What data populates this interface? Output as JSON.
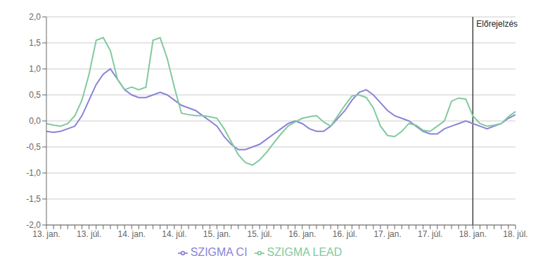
{
  "chart_data": {
    "type": "line",
    "categories": [
      "13. jan.",
      null,
      null,
      null,
      null,
      null,
      "13. júl.",
      null,
      null,
      null,
      null,
      null,
      "14. jan.",
      null,
      null,
      null,
      null,
      null,
      "14. júl.",
      null,
      null,
      null,
      null,
      null,
      "15. jan.",
      null,
      null,
      null,
      null,
      null,
      "15. júl.",
      null,
      null,
      null,
      null,
      null,
      "16. jan.",
      null,
      null,
      null,
      null,
      null,
      "16. júl.",
      null,
      null,
      null,
      null,
      null,
      "17. jan.",
      null,
      null,
      null,
      null,
      null,
      "17. júl.",
      null,
      null,
      null,
      null,
      null,
      "18. jan.",
      null,
      null,
      null,
      null,
      null,
      "18. júl."
    ],
    "series": [
      {
        "name": "SZIGMA CI",
        "values": [
          -0.2,
          -0.22,
          -0.2,
          -0.15,
          -0.1,
          0.1,
          0.4,
          0.7,
          0.9,
          1.0,
          0.8,
          0.6,
          0.5,
          0.45,
          0.45,
          0.5,
          0.55,
          0.5,
          0.4,
          0.3,
          0.25,
          0.2,
          0.1,
          0.0,
          -0.1,
          -0.3,
          -0.45,
          -0.55,
          -0.55,
          -0.5,
          -0.45,
          -0.35,
          -0.25,
          -0.15,
          -0.05,
          0.0,
          -0.05,
          -0.15,
          -0.2,
          -0.2,
          -0.1,
          0.05,
          0.2,
          0.4,
          0.55,
          0.6,
          0.5,
          0.35,
          0.2,
          0.1,
          0.05,
          0.0,
          -0.1,
          -0.2,
          -0.25,
          -0.25,
          -0.15,
          -0.1,
          -0.05,
          0.0,
          -0.05,
          -0.1,
          -0.15,
          -0.1,
          -0.05,
          0.05,
          0.12
        ]
      },
      {
        "name": "SZIGMA LEAD",
        "values": [
          -0.05,
          -0.08,
          -0.1,
          -0.05,
          0.1,
          0.4,
          0.9,
          1.55,
          1.6,
          1.35,
          0.8,
          0.6,
          0.65,
          0.6,
          0.65,
          1.55,
          1.6,
          1.2,
          0.65,
          0.15,
          0.12,
          0.1,
          0.1,
          0.08,
          0.05,
          -0.15,
          -0.4,
          -0.65,
          -0.8,
          -0.85,
          -0.75,
          -0.6,
          -0.42,
          -0.25,
          -0.1,
          -0.02,
          0.05,
          0.08,
          0.1,
          -0.02,
          -0.1,
          0.1,
          0.3,
          0.48,
          0.5,
          0.45,
          0.25,
          -0.1,
          -0.28,
          -0.3,
          -0.2,
          -0.05,
          -0.08,
          -0.18,
          -0.2,
          -0.1,
          0.0,
          0.38,
          0.44,
          0.42,
          0.1,
          -0.05,
          -0.1,
          -0.08,
          -0.05,
          0.08,
          0.18
        ]
      }
    ],
    "ylim": [
      -2.0,
      2.0
    ],
    "yticks": [
      {
        "value": -2.0,
        "label": "-2,0"
      },
      {
        "value": -1.5,
        "label": "-1,5"
      },
      {
        "value": -1.0,
        "label": "-1,0"
      },
      {
        "value": -0.5,
        "label": "-0,5"
      },
      {
        "value": 0.0,
        "label": "0,0"
      },
      {
        "value": 0.5,
        "label": "0,5"
      },
      {
        "value": 1.0,
        "label": "1,0"
      },
      {
        "value": 1.5,
        "label": "1,5"
      },
      {
        "value": 2.0,
        "label": "2,0"
      }
    ],
    "grid": true,
    "legend": "bottom",
    "annotations": [
      {
        "text": "Előrejelzés",
        "x": "18. jan.",
        "color": "#1a1a1a"
      }
    ]
  }
}
